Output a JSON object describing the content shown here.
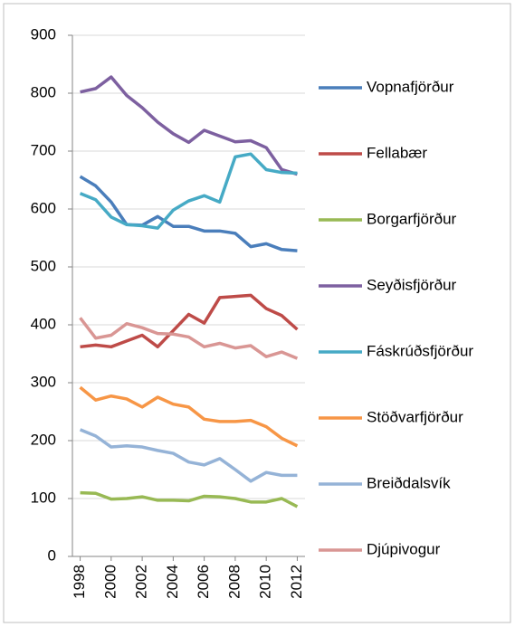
{
  "chart_data": {
    "type": "line",
    "x": [
      1998,
      1999,
      2000,
      2001,
      2002,
      2003,
      2004,
      2005,
      2006,
      2007,
      2008,
      2009,
      2010,
      2011,
      2012
    ],
    "xlim": [
      1997.5,
      2012.5
    ],
    "xticks": [
      1998,
      2000,
      2002,
      2004,
      2006,
      2008,
      2010,
      2012
    ],
    "ylim": [
      0,
      900
    ],
    "yticks": [
      0,
      100,
      200,
      300,
      400,
      500,
      600,
      700,
      800,
      900
    ],
    "grid": true,
    "legend": "right",
    "series": [
      {
        "name": "Vopnafjörður",
        "color": "#4a7ebb",
        "values": [
          656,
          640,
          612,
          573,
          572,
          587,
          570,
          570,
          562,
          562,
          558,
          535,
          540,
          530,
          528
        ]
      },
      {
        "name": "Fellabær",
        "color": "#be4b48",
        "values": [
          362,
          365,
          362,
          372,
          382,
          362,
          390,
          418,
          403,
          447,
          449,
          451,
          428,
          416,
          392
        ]
      },
      {
        "name": "Borgarfjörður",
        "color": "#98b954",
        "values": [
          110,
          109,
          99,
          100,
          103,
          97,
          97,
          96,
          104,
          103,
          100,
          94,
          94,
          100,
          86
        ]
      },
      {
        "name": "Seyðisfjörður",
        "color": "#7d60a0",
        "values": [
          802,
          808,
          828,
          796,
          775,
          750,
          730,
          715,
          736,
          726,
          716,
          718,
          706,
          668,
          660
        ]
      },
      {
        "name": "Fáskrúðsfjörður",
        "color": "#46aac5",
        "values": [
          627,
          616,
          586,
          573,
          571,
          567,
          598,
          614,
          623,
          612,
          690,
          695,
          668,
          663,
          662
        ]
      },
      {
        "name": "Stöðvarfjörður",
        "color": "#f79646",
        "values": [
          292,
          270,
          277,
          272,
          258,
          275,
          263,
          258,
          237,
          233,
          233,
          235,
          224,
          204,
          191
        ]
      },
      {
        "name": "Breiðdalsvík",
        "color": "#95b3d7",
        "values": [
          219,
          208,
          189,
          191,
          189,
          183,
          178,
          163,
          158,
          169,
          150,
          130,
          145,
          140,
          140
        ]
      },
      {
        "name": "Djúpivogur",
        "color": "#d99694",
        "values": [
          412,
          377,
          382,
          402,
          395,
          385,
          384,
          379,
          362,
          368,
          360,
          364,
          345,
          353,
          342
        ]
      }
    ]
  }
}
